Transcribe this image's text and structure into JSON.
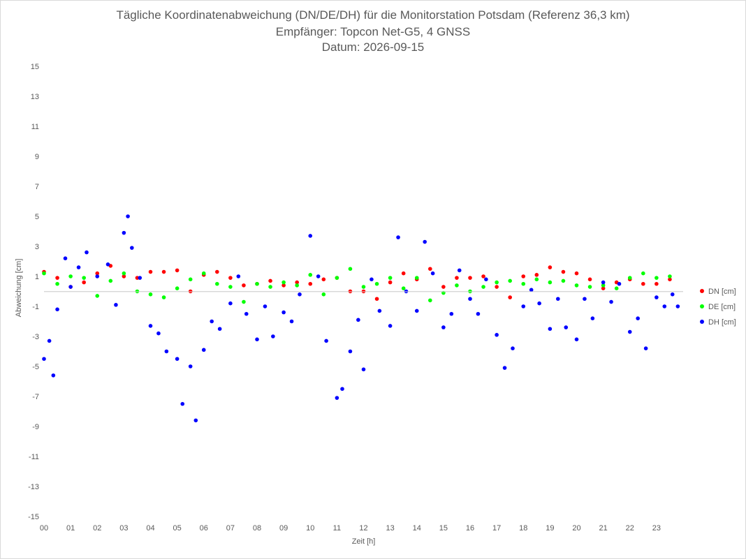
{
  "chart_data": {
    "type": "scatter",
    "title": "Tägliche Koordinatenabweichung (DN/DE/DH) für die Monitorstation Potsdam (Referenz 36,3 km)",
    "subtitle_1": "Empfänger: Topcon Net-G5, 4 GNSS",
    "subtitle_2": "Datum: 2026-09-15",
    "xlabel": "Zeit [h]",
    "ylabel": "Abweichung [cm]",
    "xlim": [
      0,
      24
    ],
    "ylim": [
      -15,
      15
    ],
    "x_tick_labels": [
      "00",
      "01",
      "02",
      "03",
      "04",
      "05",
      "06",
      "07",
      "08",
      "09",
      "10",
      "11",
      "12",
      "13",
      "14",
      "15",
      "16",
      "17",
      "18",
      "19",
      "20",
      "21",
      "22",
      "23"
    ],
    "y_tick_labels": [
      "15",
      "13",
      "11",
      "9",
      "7",
      "5",
      "3",
      "1",
      "-1",
      "-3",
      "-5",
      "-7",
      "-9",
      "-11",
      "-13",
      "-15"
    ],
    "legend_position": "right",
    "grid": false,
    "series": [
      {
        "name": "DN [cm]",
        "color": "#ff0000",
        "points": [
          [
            0.0,
            1.3
          ],
          [
            0.5,
            0.9
          ],
          [
            1.0,
            0.3
          ],
          [
            1.5,
            0.6
          ],
          [
            2.0,
            1.2
          ],
          [
            2.5,
            1.7
          ],
          [
            3.0,
            1.0
          ],
          [
            3.5,
            0.9
          ],
          [
            4.0,
            1.3
          ],
          [
            4.5,
            1.3
          ],
          [
            5.0,
            1.4
          ],
          [
            5.5,
            0.0
          ],
          [
            6.0,
            1.1
          ],
          [
            6.5,
            1.3
          ],
          [
            7.0,
            0.9
          ],
          [
            7.5,
            0.4
          ],
          [
            8.0,
            0.5
          ],
          [
            8.5,
            0.7
          ],
          [
            9.0,
            0.4
          ],
          [
            9.5,
            0.6
          ],
          [
            10.0,
            0.5
          ],
          [
            10.5,
            0.8
          ],
          [
            11.0,
            0.9
          ],
          [
            11.5,
            0.0
          ],
          [
            12.0,
            0.0
          ],
          [
            12.5,
            -0.5
          ],
          [
            13.0,
            0.6
          ],
          [
            13.5,
            1.2
          ],
          [
            14.0,
            0.8
          ],
          [
            14.5,
            1.5
          ],
          [
            15.0,
            0.3
          ],
          [
            15.5,
            0.9
          ],
          [
            16.0,
            0.9
          ],
          [
            16.5,
            1.0
          ],
          [
            17.0,
            0.3
          ],
          [
            17.5,
            -0.4
          ],
          [
            18.0,
            1.0
          ],
          [
            18.5,
            1.1
          ],
          [
            19.0,
            1.6
          ],
          [
            19.5,
            1.3
          ],
          [
            20.0,
            1.2
          ],
          [
            20.5,
            0.8
          ],
          [
            21.0,
            0.2
          ],
          [
            21.5,
            0.6
          ],
          [
            22.0,
            0.8
          ],
          [
            22.5,
            0.5
          ],
          [
            23.0,
            0.5
          ],
          [
            23.5,
            0.8
          ]
        ]
      },
      {
        "name": "DE [cm]",
        "color": "#00ff00",
        "points": [
          [
            0.0,
            1.2
          ],
          [
            0.5,
            0.5
          ],
          [
            1.0,
            1.0
          ],
          [
            1.5,
            0.9
          ],
          [
            2.0,
            -0.3
          ],
          [
            2.5,
            0.7
          ],
          [
            3.0,
            1.2
          ],
          [
            3.5,
            0.0
          ],
          [
            4.0,
            -0.2
          ],
          [
            4.5,
            -0.4
          ],
          [
            5.0,
            0.2
          ],
          [
            5.5,
            0.8
          ],
          [
            6.0,
            1.2
          ],
          [
            6.5,
            0.5
          ],
          [
            7.0,
            0.3
          ],
          [
            7.5,
            -0.7
          ],
          [
            8.0,
            0.5
          ],
          [
            8.5,
            0.3
          ],
          [
            9.0,
            0.6
          ],
          [
            9.5,
            0.4
          ],
          [
            10.0,
            1.1
          ],
          [
            10.5,
            -0.2
          ],
          [
            11.0,
            0.9
          ],
          [
            11.5,
            1.5
          ],
          [
            12.0,
            0.3
          ],
          [
            12.5,
            0.5
          ],
          [
            13.0,
            0.9
          ],
          [
            13.5,
            0.2
          ],
          [
            14.0,
            0.9
          ],
          [
            14.5,
            -0.6
          ],
          [
            15.0,
            -0.1
          ],
          [
            15.5,
            0.4
          ],
          [
            16.0,
            0.0
          ],
          [
            16.5,
            0.3
          ],
          [
            17.0,
            0.6
          ],
          [
            17.5,
            0.7
          ],
          [
            18.0,
            0.5
          ],
          [
            18.5,
            0.8
          ],
          [
            19.0,
            0.6
          ],
          [
            19.5,
            0.7
          ],
          [
            20.0,
            0.4
          ],
          [
            20.5,
            0.3
          ],
          [
            21.0,
            0.4
          ],
          [
            21.5,
            0.2
          ],
          [
            22.0,
            0.9
          ],
          [
            22.5,
            1.2
          ],
          [
            23.0,
            0.9
          ],
          [
            23.5,
            1.0
          ]
        ]
      },
      {
        "name": "DH [cm]",
        "color": "#0000ff",
        "points": [
          [
            0.0,
            -4.5
          ],
          [
            0.2,
            -3.3
          ],
          [
            0.35,
            -5.6
          ],
          [
            0.5,
            -1.2
          ],
          [
            0.8,
            2.2
          ],
          [
            1.0,
            0.3
          ],
          [
            1.3,
            1.6
          ],
          [
            1.6,
            2.6
          ],
          [
            2.0,
            1.0
          ],
          [
            2.4,
            1.8
          ],
          [
            2.7,
            -0.9
          ],
          [
            3.0,
            3.9
          ],
          [
            3.15,
            5.0
          ],
          [
            3.3,
            2.9
          ],
          [
            3.6,
            0.9
          ],
          [
            4.0,
            -2.3
          ],
          [
            4.3,
            -2.8
          ],
          [
            4.6,
            -4.0
          ],
          [
            5.0,
            -4.5
          ],
          [
            5.2,
            -7.5
          ],
          [
            5.5,
            -5.0
          ],
          [
            5.7,
            -8.6
          ],
          [
            6.0,
            -3.9
          ],
          [
            6.3,
            -2.0
          ],
          [
            6.6,
            -2.5
          ],
          [
            7.0,
            -0.8
          ],
          [
            7.3,
            1.0
          ],
          [
            7.6,
            -1.5
          ],
          [
            8.0,
            -3.2
          ],
          [
            8.3,
            -1.0
          ],
          [
            8.6,
            -3.0
          ],
          [
            9.0,
            -1.4
          ],
          [
            9.3,
            -2.0
          ],
          [
            9.6,
            -0.2
          ],
          [
            10.0,
            3.7
          ],
          [
            10.3,
            1.0
          ],
          [
            10.6,
            -3.3
          ],
          [
            11.0,
            -7.1
          ],
          [
            11.2,
            -6.5
          ],
          [
            11.5,
            -4.0
          ],
          [
            11.8,
            -1.9
          ],
          [
            12.0,
            -5.2
          ],
          [
            12.3,
            0.8
          ],
          [
            12.6,
            -1.3
          ],
          [
            13.0,
            -2.3
          ],
          [
            13.3,
            3.6
          ],
          [
            13.6,
            0.0
          ],
          [
            14.0,
            -1.3
          ],
          [
            14.3,
            3.3
          ],
          [
            14.6,
            1.2
          ],
          [
            15.0,
            -2.4
          ],
          [
            15.3,
            -1.5
          ],
          [
            15.6,
            1.4
          ],
          [
            16.0,
            -0.5
          ],
          [
            16.3,
            -1.5
          ],
          [
            16.6,
            0.8
          ],
          [
            17.0,
            -2.9
          ],
          [
            17.3,
            -5.1
          ],
          [
            17.6,
            -3.8
          ],
          [
            18.0,
            -1.0
          ],
          [
            18.3,
            0.1
          ],
          [
            18.6,
            -0.8
          ],
          [
            19.0,
            -2.5
          ],
          [
            19.3,
            -0.5
          ],
          [
            19.6,
            -2.4
          ],
          [
            20.0,
            -3.2
          ],
          [
            20.3,
            -0.5
          ],
          [
            20.6,
            -1.8
          ],
          [
            21.0,
            0.6
          ],
          [
            21.3,
            -0.7
          ],
          [
            21.6,
            0.5
          ],
          [
            22.0,
            -2.7
          ],
          [
            22.3,
            -1.8
          ],
          [
            22.6,
            -3.8
          ],
          [
            23.0,
            -0.4
          ],
          [
            23.3,
            -1.0
          ],
          [
            23.6,
            -0.2
          ],
          [
            23.8,
            -1.0
          ]
        ]
      }
    ]
  }
}
